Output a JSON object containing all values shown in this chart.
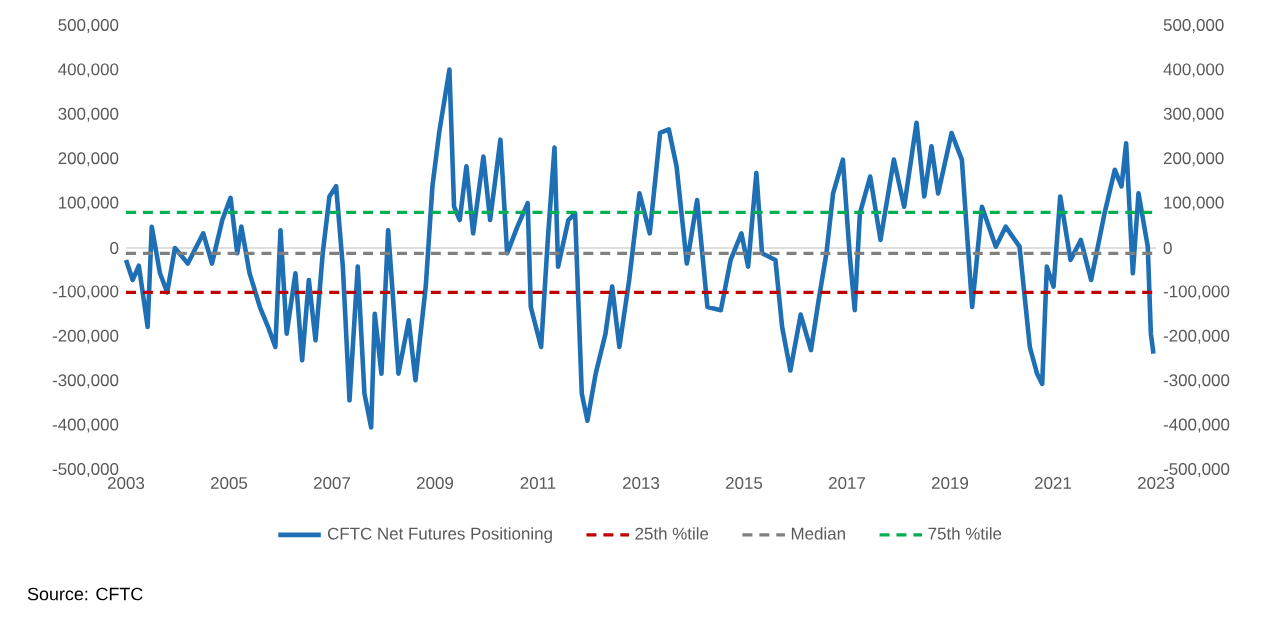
{
  "chart_data": {
    "type": "line",
    "annotations": [
      "Source: CFTC"
    ],
    "x": [
      2003.0,
      2003.13,
      2003.25,
      2003.42,
      2003.5,
      2003.66,
      2003.8,
      2003.95,
      2004.2,
      2004.5,
      2004.67,
      2004.87,
      2005.03,
      2005.16,
      2005.24,
      2005.4,
      2005.6,
      2005.76,
      2005.9,
      2006.0,
      2006.12,
      2006.29,
      2006.42,
      2006.55,
      2006.68,
      2006.82,
      2006.95,
      2007.08,
      2007.21,
      2007.34,
      2007.5,
      2007.63,
      2007.76,
      2007.83,
      2007.96,
      2008.09,
      2008.29,
      2008.49,
      2008.62,
      2008.82,
      2008.95,
      2009.08,
      2009.28,
      2009.37,
      2009.48,
      2009.61,
      2009.74,
      2009.94,
      2010.07,
      2010.27,
      2010.4,
      2010.6,
      2010.8,
      2010.86,
      2011.06,
      2011.19,
      2011.32,
      2011.39,
      2011.59,
      2011.72,
      2011.85,
      2011.96,
      2012.12,
      2012.31,
      2012.44,
      2012.58,
      2012.77,
      2012.97,
      2013.17,
      2013.37,
      2013.54,
      2013.69,
      2013.89,
      2014.09,
      2014.29,
      2014.55,
      2014.74,
      2014.95,
      2015.08,
      2015.24,
      2015.35,
      2015.61,
      2015.74,
      2015.9,
      2016.1,
      2016.3,
      2016.45,
      2016.6,
      2016.73,
      2016.92,
      2017.05,
      2017.15,
      2017.25,
      2017.45,
      2017.65,
      2017.91,
      2018.11,
      2018.35,
      2018.5,
      2018.64,
      2018.77,
      2019.03,
      2019.23,
      2019.43,
      2019.62,
      2019.89,
      2020.08,
      2020.35,
      2020.55,
      2020.69,
      2020.79,
      2020.88,
      2021.01,
      2021.14,
      2021.34,
      2021.54,
      2021.74,
      2022.0,
      2022.2,
      2022.33,
      2022.42,
      2022.55,
      2022.66,
      2022.84,
      2022.9,
      2022.95
    ],
    "series": [
      {
        "name": "CFTC Net Futures Positioning",
        "color": "#1f6fb5",
        "values": [
          -27000,
          -72000,
          -40000,
          -178000,
          48000,
          -57000,
          -100000,
          0,
          -35000,
          33000,
          -35000,
          63000,
          113000,
          -12000,
          48000,
          -57000,
          -133000,
          -178000,
          -223000,
          40000,
          -193000,
          -57000,
          -253000,
          -72000,
          -208000,
          -12000,
          116000,
          139000,
          -42000,
          -343000,
          -42000,
          -328000,
          -404000,
          -148000,
          -283000,
          40000,
          -283000,
          -163000,
          -298000,
          -87000,
          139000,
          259000,
          402000,
          93000,
          63000,
          184000,
          33000,
          206000,
          63000,
          244000,
          -12000,
          48000,
          101000,
          -133000,
          -223000,
          18000,
          226000,
          -42000,
          63000,
          78000,
          -328000,
          -389000,
          -283000,
          -193000,
          -87000,
          -223000,
          -72000,
          123000,
          33000,
          259000,
          267000,
          184000,
          -35000,
          108000,
          -133000,
          -140000,
          -27000,
          33000,
          -42000,
          169000,
          -12000,
          -27000,
          -178000,
          -276000,
          -150000,
          -230000,
          -117000,
          -12000,
          123000,
          199000,
          -12000,
          -140000,
          78000,
          161000,
          18000,
          199000,
          93000,
          282000,
          116000,
          229000,
          123000,
          259000,
          199000,
          -133000,
          93000,
          3000,
          48000,
          3000,
          -223000,
          -283000,
          -306000,
          -42000,
          -87000,
          116000,
          -27000,
          18000,
          -72000,
          78000,
          176000,
          139000,
          236000,
          -57000,
          123000,
          3000,
          -193000,
          -238000
        ]
      }
    ],
    "xlim": [
      2003,
      2023
    ],
    "xticks": [
      2003,
      2005,
      2007,
      2009,
      2011,
      2013,
      2015,
      2017,
      2019,
      2021,
      2023
    ],
    "ylim": [
      -500000,
      500000
    ],
    "yticks": [
      {
        "value": -500000,
        "label": "-500,000"
      },
      {
        "value": -400000,
        "label": "-400,000"
      },
      {
        "value": -300000,
        "label": "-300,000"
      },
      {
        "value": -200000,
        "label": "-200,000"
      },
      {
        "value": -100000,
        "label": "-100,000"
      },
      {
        "value": 0,
        "label": "0"
      },
      {
        "value": 100000,
        "label": "100,000"
      },
      {
        "value": 200000,
        "label": "200,000"
      },
      {
        "value": 300000,
        "label": "300,000"
      },
      {
        "value": 400000,
        "label": "400,000"
      },
      {
        "value": 500000,
        "label": "500,000"
      }
    ],
    "y2lim": [
      -500000,
      500000
    ],
    "y2ticks": [
      {
        "value": -500000,
        "label": "-500,000"
      },
      {
        "value": -400000,
        "label": "-400,000"
      },
      {
        "value": -300000,
        "label": "-300,000"
      },
      {
        "value": -200000,
        "label": "-200,000"
      },
      {
        "value": -100000,
        "label": "-100,000"
      },
      {
        "value": 0,
        "label": "0"
      },
      {
        "value": 100000,
        "label": "100,000"
      },
      {
        "value": 200000,
        "label": "200,000"
      },
      {
        "value": 300000,
        "label": "300,000"
      },
      {
        "value": 400000,
        "label": "400,000"
      },
      {
        "value": 500000,
        "label": "500,000"
      }
    ],
    "ref_lines": [
      {
        "axis": "y",
        "value": -100000,
        "label": "25th %tile",
        "color": "#c00000",
        "line_style": "dashed"
      },
      {
        "axis": "y",
        "value": -12000,
        "label": "Median",
        "color": "#808080",
        "line_style": "dashed"
      },
      {
        "axis": "y",
        "value": 80000,
        "label": "75th %tile",
        "color": "#00b050",
        "line_style": "dashed"
      }
    ],
    "legend": "bottom",
    "marker": "none",
    "line_style": "solid"
  }
}
